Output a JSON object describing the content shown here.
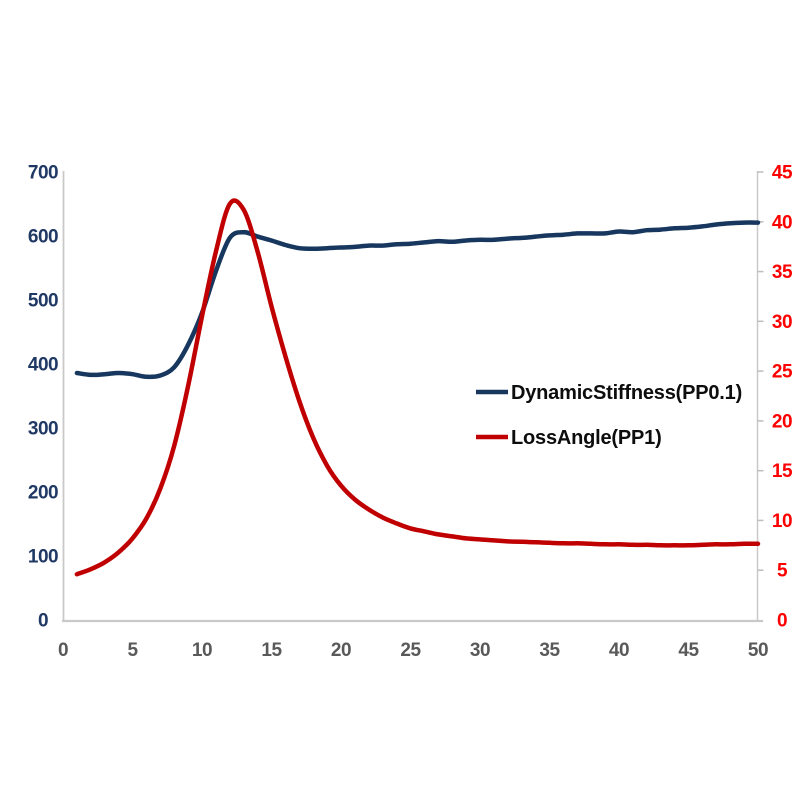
{
  "chart_data": {
    "type": "line",
    "title": "",
    "x": [
      1,
      2,
      3,
      4,
      5,
      6,
      7,
      8,
      9,
      10,
      11,
      12,
      13,
      14,
      15,
      16,
      17,
      18,
      19,
      20,
      21,
      22,
      23,
      24,
      25,
      26,
      27,
      28,
      29,
      30,
      31,
      32,
      33,
      34,
      35,
      36,
      37,
      38,
      39,
      40,
      41,
      42,
      43,
      44,
      45,
      46,
      47,
      48,
      49,
      50
    ],
    "series": [
      {
        "name": "DynamicStiffness(PP0.1)",
        "axis": "left",
        "color": "#17375e",
        "values": [
          386,
          383,
          384,
          386,
          384,
          380,
          382,
          395,
          430,
          480,
          545,
          597,
          606,
          599,
          593,
          586,
          581,
          580,
          581,
          582,
          583,
          585,
          585,
          587,
          588,
          590,
          592,
          591,
          593,
          594,
          594,
          596,
          597,
          599,
          601,
          602,
          604,
          604,
          604,
          607,
          606,
          609,
          610,
          612,
          613,
          615,
          618,
          620,
          621,
          621
        ]
      },
      {
        "name": "LossAngle(PP1)",
        "axis": "right",
        "color": "#c00000",
        "values": [
          4.6,
          5.1,
          5.8,
          6.8,
          8.2,
          10.2,
          13.2,
          17.5,
          23.5,
          30.5,
          37,
          41.8,
          41.2,
          37,
          31.5,
          26.5,
          22,
          18.3,
          15.5,
          13.5,
          12.1,
          11.1,
          10.3,
          9.7,
          9.2,
          8.9,
          8.6,
          8.4,
          8.2,
          8.1,
          8,
          7.9,
          7.85,
          7.8,
          7.75,
          7.7,
          7.7,
          7.65,
          7.6,
          7.6,
          7.55,
          7.55,
          7.5,
          7.5,
          7.5,
          7.55,
          7.6,
          7.6,
          7.65,
          7.65
        ]
      }
    ],
    "x_axis": {
      "range": [
        0,
        50
      ],
      "ticks": [
        0,
        5,
        10,
        15,
        20,
        25,
        30,
        35,
        40,
        45,
        50
      ],
      "label_color": "#595959"
    },
    "y_left": {
      "range": [
        0,
        700
      ],
      "ticks": [
        0,
        100,
        200,
        300,
        400,
        500,
        600,
        700
      ],
      "label_color": "#1f3864"
    },
    "y_right": {
      "range": [
        0,
        45
      ],
      "ticks": [
        0,
        5,
        10,
        15,
        20,
        25,
        30,
        35,
        40,
        45
      ],
      "label_color": "#ff0000"
    },
    "legend": {
      "position": "inside-right",
      "items": [
        {
          "label": "DynamicStiffness(PP0.1)",
          "color": "#17375e"
        },
        {
          "label": "LossAngle(PP1)",
          "color": "#c00000"
        }
      ]
    },
    "grid": "off",
    "axis_line_color": "#c9c9c9",
    "tick_mark_color": "#bdbdbd",
    "background": "#ffffff"
  }
}
